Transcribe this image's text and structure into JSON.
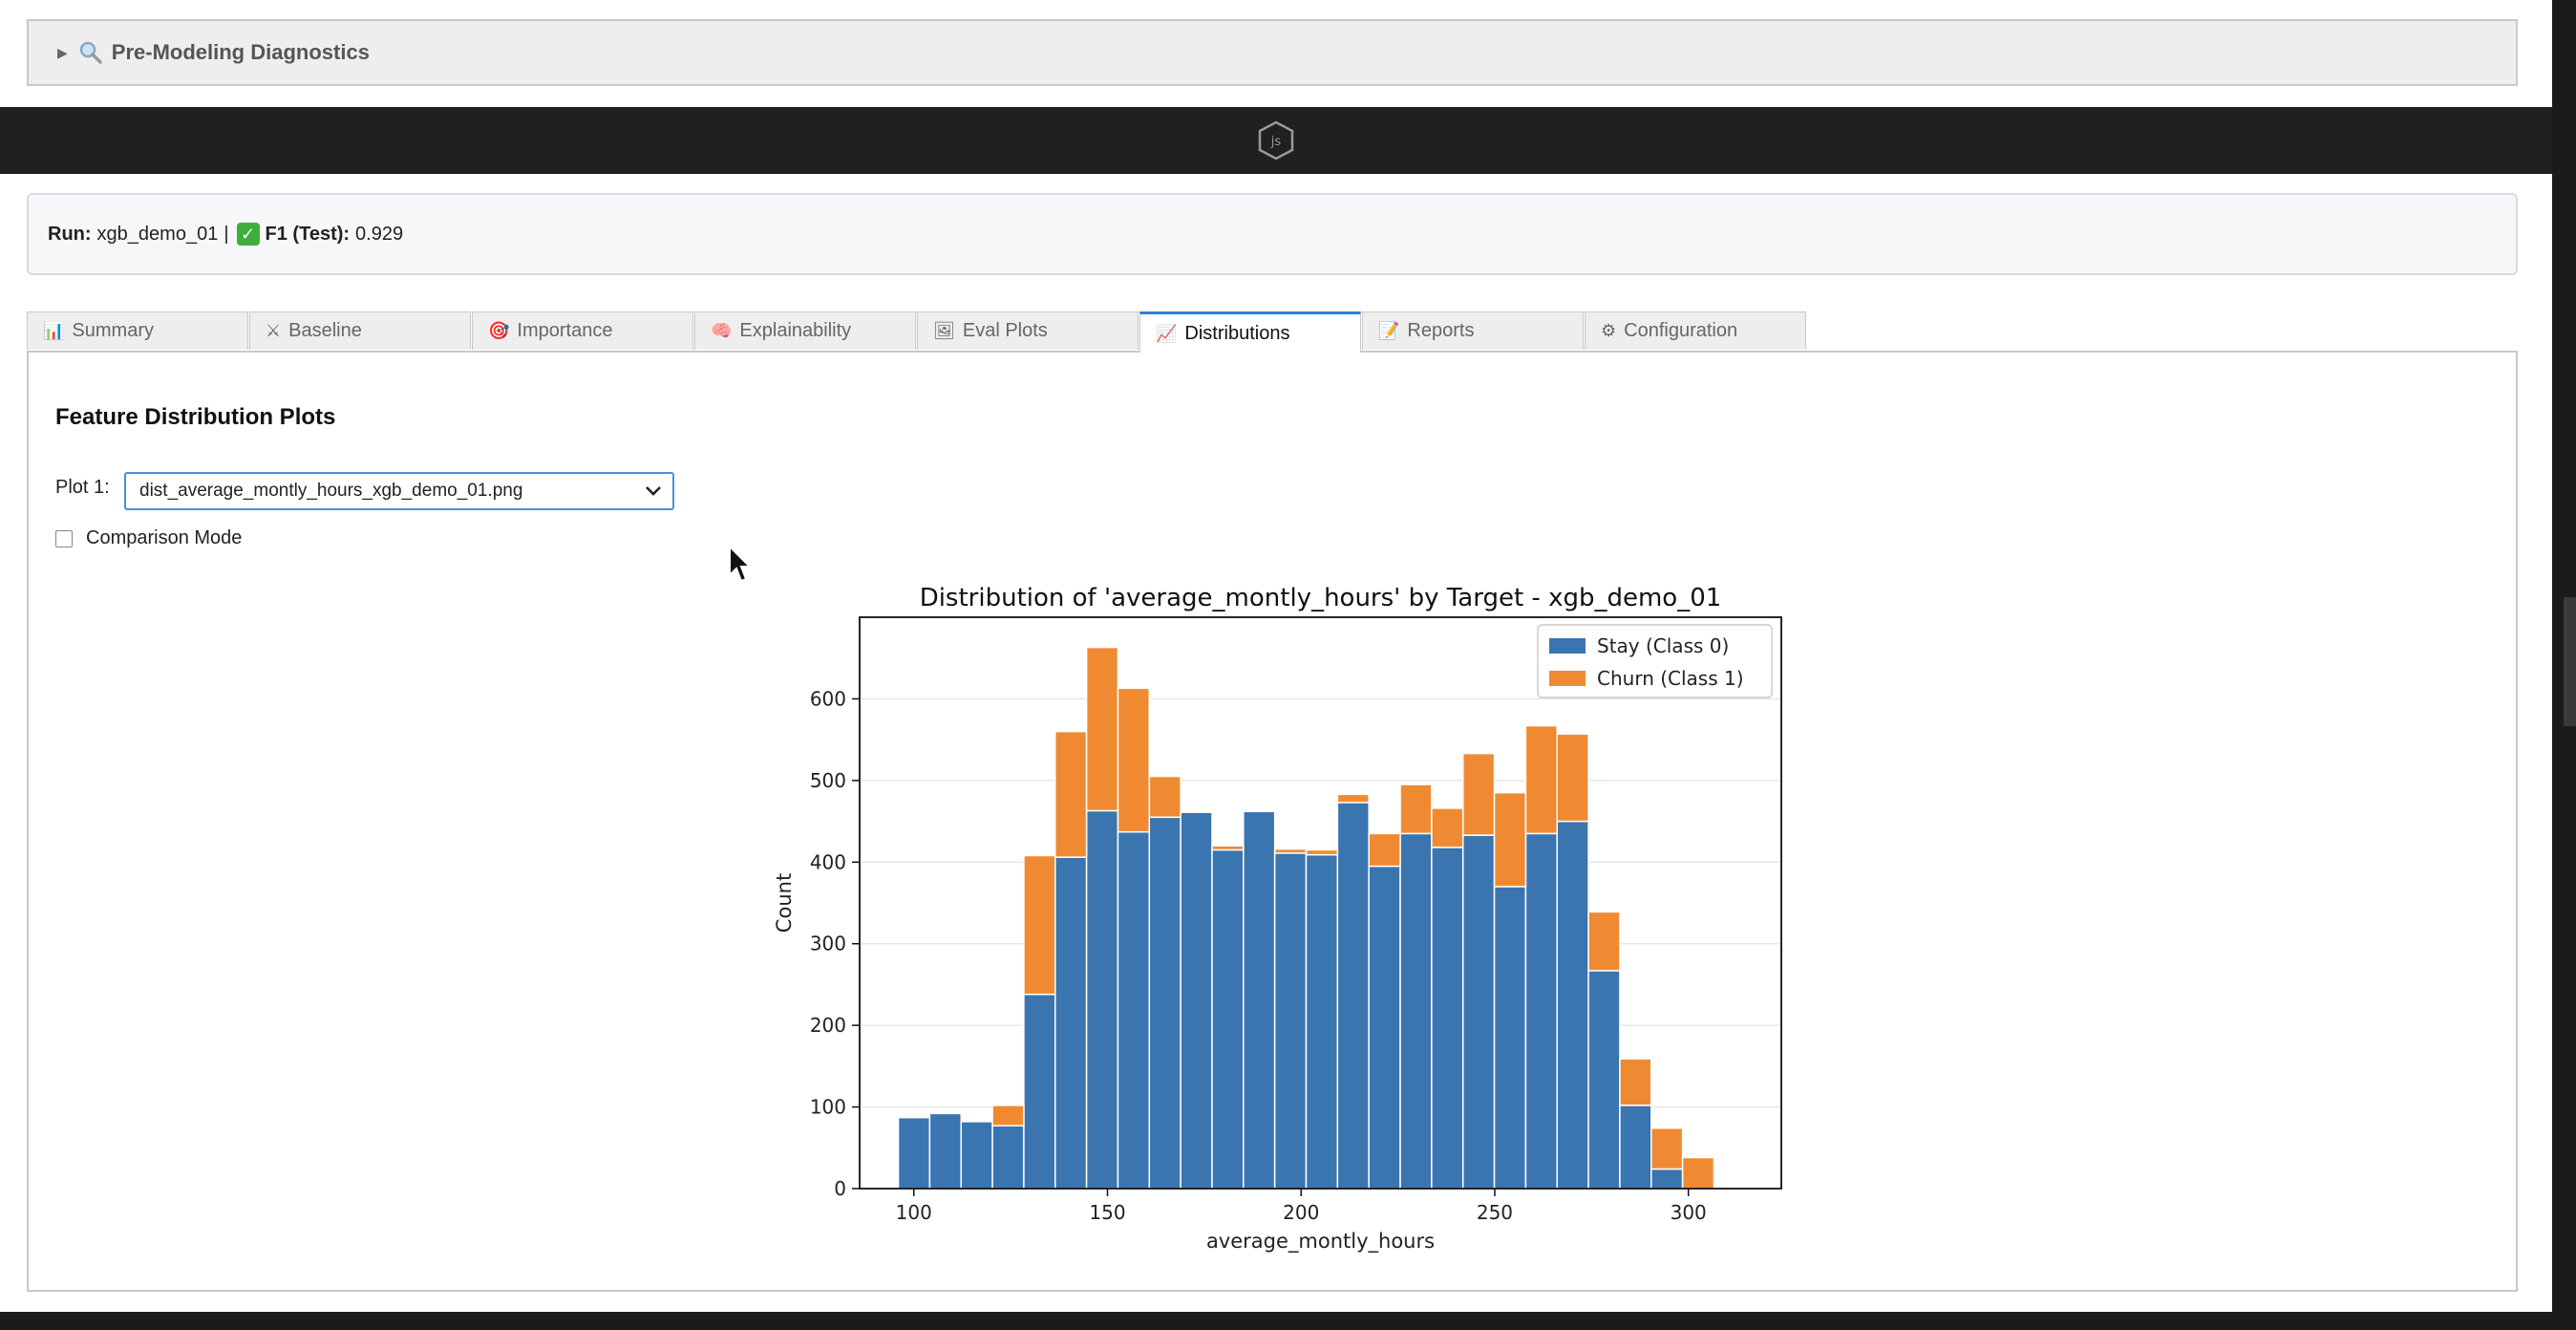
{
  "diagnostics": {
    "label": "Pre-Modeling Diagnostics",
    "icon": "magnifier-icon"
  },
  "js_band": {
    "icon": "js-hexagon-icon",
    "text": "js"
  },
  "run_info": {
    "run_label": "Run:",
    "run_value": "xgb_demo_01",
    "separator": "|",
    "metric_label": "F1 (Test):",
    "metric_value": "0.929",
    "check_icon": "check-icon"
  },
  "tabs": [
    {
      "label": "Summary",
      "icon": "bar-chart-icon",
      "glyph": "📊"
    },
    {
      "label": "Baseline",
      "icon": "crossed-swords-icon",
      "glyph": "⚔"
    },
    {
      "label": "Importance",
      "icon": "target-icon",
      "glyph": "🎯"
    },
    {
      "label": "Explainability",
      "icon": "brain-icon",
      "glyph": "🧠"
    },
    {
      "label": "Eval Plots",
      "icon": "picture-icon",
      "glyph": "🖼"
    },
    {
      "label": "Distributions",
      "icon": "trend-chart-icon",
      "glyph": "📈",
      "active": true
    },
    {
      "label": "Reports",
      "icon": "pencil-icon",
      "glyph": "📝"
    },
    {
      "label": "Configuration",
      "icon": "gear-icon",
      "glyph": "⚙"
    }
  ],
  "panel": {
    "title": "Feature Distribution Plots",
    "plot_label": "Plot 1:",
    "plot_selected": "dist_average_montly_hours_xgb_demo_01.png",
    "comparison_label": "Comparison Mode",
    "comparison_checked": false
  },
  "chart_data": {
    "type": "bar",
    "stacked": true,
    "title": "Distribution of 'average_montly_hours' by Target - xgb_demo_01",
    "xlabel": "average_montly_hours",
    "ylabel": "Count",
    "xlim": [
      86,
      324
    ],
    "ylim": [
      0,
      700
    ],
    "xticks": [
      100,
      150,
      200,
      250,
      300
    ],
    "yticks": [
      0,
      100,
      200,
      300,
      400,
      500,
      600
    ],
    "grid": true,
    "legend_position": "top-right",
    "bin_edges": [
      96,
      104.1,
      112.2,
      120.3,
      128.4,
      136.5,
      144.6,
      152.7,
      160.8,
      168.9,
      177,
      185.1,
      193.2,
      201.3,
      209.4,
      217.5,
      225.6,
      233.7,
      241.8,
      249.9,
      258,
      266.1,
      274.2,
      282.3,
      290.4,
      298.5,
      306.6
    ],
    "series": [
      {
        "name": "Stay (Class 0)",
        "color": "#3a75b0",
        "values": [
          87,
          92,
          82,
          77,
          238,
          406,
          463,
          437,
          455,
          461,
          415,
          462,
          411,
          409,
          473,
          395,
          435,
          418,
          433,
          370,
          435,
          450,
          267,
          102,
          24,
          0
        ]
      },
      {
        "name": "Churn (Class 1)",
        "color": "#f08a32",
        "values": [
          0,
          0,
          0,
          25,
          170,
          154,
          200,
          176,
          50,
          0,
          5,
          0,
          5,
          6,
          10,
          40,
          60,
          48,
          100,
          115,
          132,
          107,
          72,
          57,
          50,
          38
        ]
      }
    ]
  }
}
